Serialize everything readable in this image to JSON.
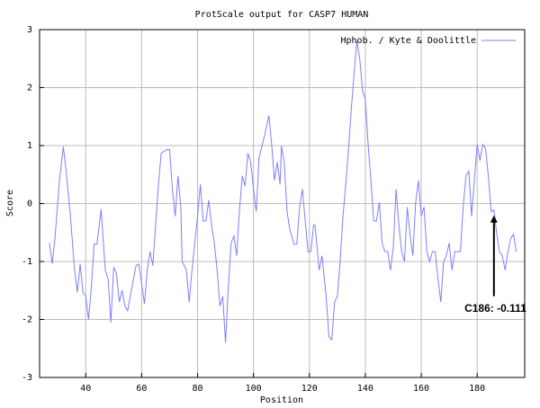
{
  "chart_data": {
    "type": "line",
    "title": "ProtScale output for CASP7 HUMAN",
    "x_label": "Position",
    "y_label": "Score",
    "x": [
      27,
      28,
      29,
      30.6,
      32,
      33,
      34.5,
      36,
      37,
      38,
      39,
      40,
      41,
      42,
      43,
      44,
      45.5,
      47,
      48,
      49,
      50,
      51,
      52,
      53,
      54,
      55,
      56.5,
      58,
      59,
      60,
      61,
      62,
      63,
      64,
      65,
      66,
      67,
      69,
      70,
      71,
      72,
      73,
      74,
      74.5,
      76,
      77,
      78,
      79,
      80,
      81,
      82,
      83,
      84,
      85,
      86,
      87,
      88,
      89,
      90,
      91,
      92,
      93,
      94,
      95,
      96,
      97,
      98,
      99,
      100,
      101,
      102,
      103,
      104,
      105.5,
      106.5,
      107.5,
      108.5,
      109.5,
      110,
      111,
      112,
      113,
      114.5,
      115.5,
      116.5,
      117.5,
      118.5,
      119.5,
      120.5,
      121.5,
      122,
      123.5,
      124.5,
      126,
      127,
      128,
      129,
      130,
      131,
      132,
      133,
      134,
      135,
      136,
      137,
      138,
      139,
      140,
      141,
      142,
      143,
      144,
      145,
      146,
      147,
      148,
      149,
      150,
      151,
      152,
      153,
      154,
      155,
      156,
      157,
      158,
      159,
      160,
      161,
      162,
      163,
      164,
      165,
      166,
      167,
      168,
      169,
      170,
      171,
      172,
      173,
      174,
      175,
      176,
      177,
      178,
      179,
      180,
      181,
      182,
      183,
      184,
      185,
      186,
      187,
      188,
      189,
      190,
      191,
      192,
      193,
      194
    ],
    "series": [
      {
        "name": "Hphob. / Kyte & Doolittle",
        "color": "#7f7fff",
        "values": [
          -0.68,
          -1.04,
          -0.6,
          0.4,
          0.98,
          0.56,
          -0.2,
          -1.15,
          -1.53,
          -1.04,
          -1.53,
          -1.6,
          -2.0,
          -1.45,
          -0.7,
          -0.7,
          -0.1,
          -1.15,
          -1.3,
          -2.05,
          -1.1,
          -1.2,
          -1.7,
          -1.5,
          -1.77,
          -1.85,
          -1.45,
          -1.07,
          -1.04,
          -1.38,
          -1.73,
          -1.15,
          -0.83,
          -1.07,
          -0.37,
          0.33,
          0.87,
          0.93,
          0.93,
          0.25,
          -0.22,
          0.48,
          -0.06,
          -1.0,
          -1.15,
          -1.7,
          -1.15,
          -0.68,
          -0.22,
          0.33,
          -0.3,
          -0.3,
          0.06,
          -0.37,
          -0.68,
          -1.15,
          -1.77,
          -1.6,
          -2.4,
          -1.45,
          -0.68,
          -0.56,
          -0.9,
          -0.1,
          0.48,
          0.3,
          0.87,
          0.71,
          0.25,
          -0.14,
          0.79,
          0.99,
          1.18,
          1.52,
          1.02,
          0.4,
          0.71,
          0.33,
          0.99,
          0.71,
          -0.14,
          -0.45,
          -0.7,
          -0.7,
          -0.06,
          0.25,
          -0.3,
          -0.83,
          -0.83,
          -0.37,
          -0.37,
          -1.15,
          -0.9,
          -1.6,
          -2.3,
          -2.35,
          -1.7,
          -1.6,
          -1.0,
          -0.22,
          0.33,
          0.95,
          1.64,
          2.26,
          2.8,
          2.5,
          1.95,
          1.8,
          1.02,
          0.4,
          -0.3,
          -0.3,
          0.02,
          -0.68,
          -0.83,
          -0.83,
          -1.15,
          -0.76,
          0.25,
          -0.37,
          -0.83,
          -1.0,
          -0.06,
          -0.53,
          -0.9,
          0.02,
          0.4,
          -0.22,
          -0.06,
          -0.83,
          -1.0,
          -0.83,
          -0.83,
          -1.3,
          -1.7,
          -1.0,
          -0.9,
          -0.68,
          -1.15,
          -0.83,
          -0.83,
          -0.83,
          -0.06,
          0.48,
          0.56,
          -0.22,
          0.4,
          1.02,
          0.74,
          1.02,
          0.95,
          0.48,
          -0.14,
          -0.111,
          -0.53,
          -0.83,
          -0.9,
          -1.15,
          -0.83,
          -0.6,
          -0.53,
          -0.83
        ]
      }
    ],
    "xlim": [
      23.5,
      197
    ],
    "ylim": [
      -3,
      3
    ],
    "xticks": [
      40,
      60,
      80,
      100,
      120,
      140,
      160,
      180
    ],
    "yticks": [
      -3,
      -2,
      -1,
      0,
      1,
      2,
      3
    ],
    "grid": true,
    "legend": "top-right",
    "annotation": {
      "text": "C186: -0.111",
      "x": 186,
      "y": -0.111
    }
  }
}
